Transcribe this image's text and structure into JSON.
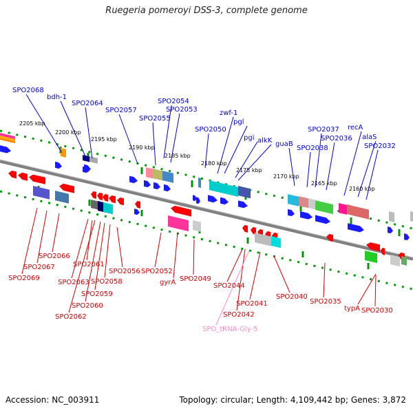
{
  "title": "Ruegeria pomeroyi DSS-3, complete genome",
  "footer": {
    "accession": "Accession: NC_003911",
    "summary": "Topology: circular; Length: 4,109,442 bp; Genes: 3,872"
  },
  "colors": {
    "forward_gene": "#1a1aff",
    "reverse_gene": "#ff0000",
    "top_labels": "#0000cc",
    "bottom_labels": "#cc0000",
    "trna_label": "#ff88cc",
    "backbone": "#808080",
    "tick": "#009900"
  },
  "scale_ticks": [
    "2205 kbp",
    "2200 kbp",
    "2195 kbp",
    "2190 kbp",
    "2185 kbp",
    "2180 kbp",
    "2175 kbp",
    "2170 kbp",
    "2165 kbp",
    "2160 kbp"
  ],
  "top_gene_labels": [
    "SPO2068",
    "bdh-1",
    "SPO2064",
    "SPO2057",
    "SPO2055",
    "SPO2054",
    "SPO2053",
    "SPO2050",
    "zwf-1",
    "pgl",
    "pgi",
    "alkK",
    "guaB",
    "SPO2038",
    "SPO2037",
    "SPO2036",
    "recA",
    "alaS",
    "SPO2032"
  ],
  "bottom_gene_labels": [
    "SPO2069",
    "SPO2067",
    "SPO2066",
    "SPO2063",
    "SPO2061",
    "SPO2062",
    "SPO2060",
    "SPO2059",
    "SPO2058",
    "SPO2056",
    "SPO2052",
    "gyrA",
    "SPO2049",
    "SPO2044",
    "SPO2042",
    "SPO_tRNA-Gly-5",
    "SPO2041",
    "SPO2040",
    "SPO2035",
    "typA",
    "SPO2030"
  ]
}
